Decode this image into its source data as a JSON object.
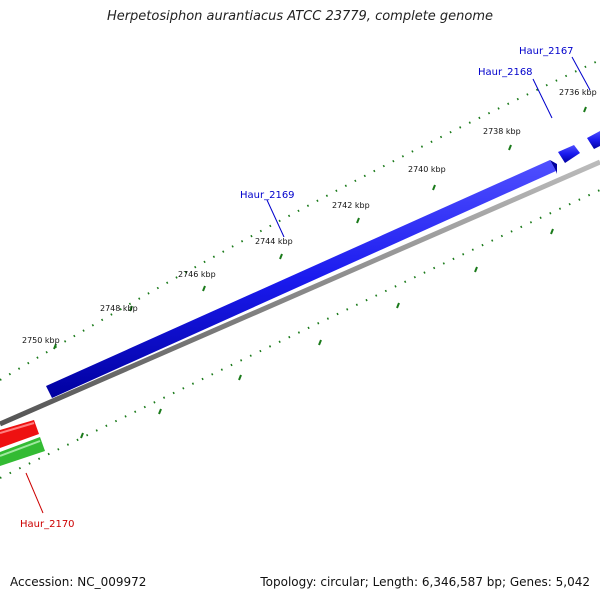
{
  "title": "Herpetosiphon aurantiacus ATCC 23779, complete genome",
  "footer": {
    "accession": "Accession: NC_009972",
    "stats": "Topology: circular; Length: 6,346,587 bp; Genes: 5,042"
  },
  "kbp_labels": [
    "2750 kbp",
    "2748 kbp",
    "2746 kbp",
    "2744 kbp",
    "2742 kbp",
    "2740 kbp",
    "2738 kbp",
    "2736 kbp"
  ],
  "genes": [
    {
      "name": "Haur_2167",
      "strand": "forward",
      "color": "#0000cc"
    },
    {
      "name": "Haur_2168",
      "strand": "forward",
      "color": "#0000cc"
    },
    {
      "name": "Haur_2169",
      "strand": "forward",
      "color": "#0000cc"
    },
    {
      "name": "Haur_2170",
      "strand": "reverse",
      "color": "#cc0000"
    }
  ],
  "colors": {
    "forward_gene": "#1a1aee",
    "reverse_gene": "#ee1111",
    "green_track": "#33bb33",
    "backbone": "#888888",
    "ticks": "#1a7a1a"
  }
}
